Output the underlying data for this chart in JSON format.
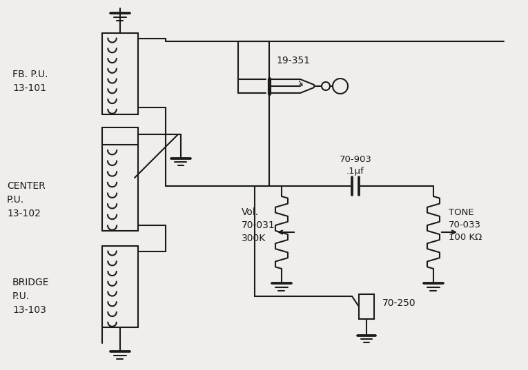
{
  "bg_color": "#f0eeea",
  "line_color": "#1a1a1a",
  "lw": 1.5,
  "labels": {
    "fb_pu": "FB. P.U.\n13-101",
    "center_pu": "CENTER\nP.U.\n13-102",
    "bridge_pu": "BRIDGE\nP.U.\n13-103",
    "jack": "19-351",
    "cap": "70-903\n.1μf",
    "vol": "Vol.\n70-031\n300K",
    "tone": "TONE\n70-033\n100 KΩ",
    "sw": "70-250"
  },
  "figsize": [
    7.65,
    5.37
  ],
  "dpi": 100
}
